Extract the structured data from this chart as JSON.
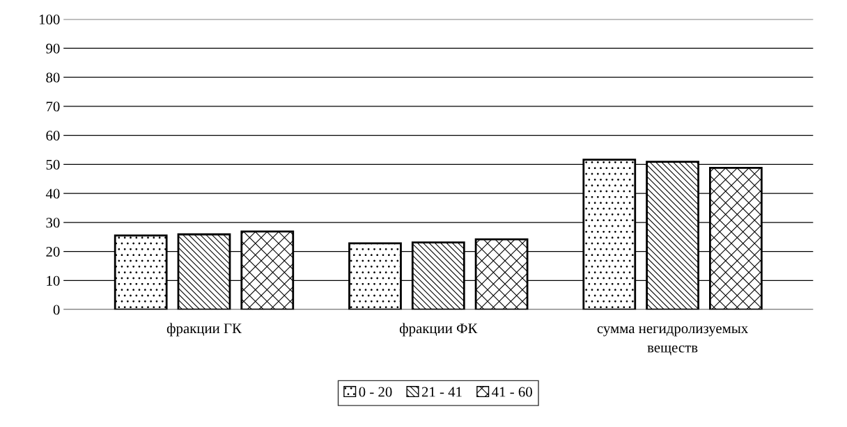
{
  "chart_data": {
    "type": "bar",
    "categories": [
      "фракции ГК",
      "фракции ФК",
      "сумма негидролизуемых веществ"
    ],
    "series": [
      {
        "name": "0 - 20",
        "color": "#000000",
        "values": [
          25.5,
          22.8,
          51.6
        ]
      },
      {
        "name": "21 - 41",
        "color": "#000000",
        "values": [
          25.9,
          23.1,
          50.9
        ]
      },
      {
        "name": "41 - 60",
        "color": "#000000",
        "values": [
          26.9,
          24.2,
          48.8
        ]
      }
    ],
    "ylim": [
      0,
      100
    ],
    "yticks": [
      0,
      10,
      20,
      30,
      40,
      50,
      60,
      70,
      80,
      90,
      100
    ],
    "grid": "y",
    "legend": "bottom"
  }
}
